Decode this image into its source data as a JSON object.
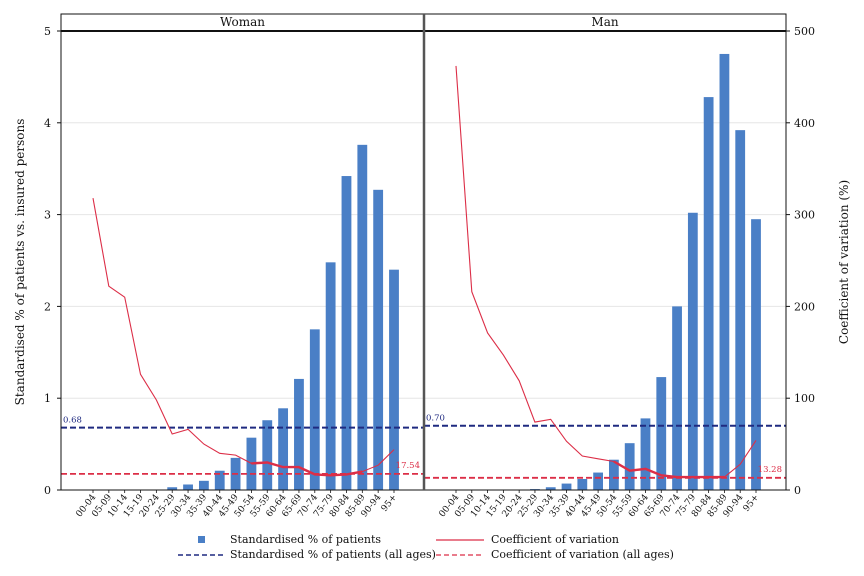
{
  "chart_data": {
    "type": "bar",
    "panels": [
      "Woman",
      "Man"
    ],
    "categories": [
      "00-04",
      "05-09",
      "10-14",
      "15-19",
      "20-24",
      "25-29",
      "30-34",
      "35-39",
      "40-44",
      "45-49",
      "50-54",
      "55-59",
      "60-64",
      "65-69",
      "70-74",
      "75-79",
      "80-84",
      "85-89",
      "90-94",
      "95+"
    ],
    "ylabel_left": "Standardised % of patients vs. insured persons",
    "ylabel_right": "Coefficient of variation (%)",
    "ylim_left": [
      0,
      5
    ],
    "yticks_left": [
      "0",
      "1",
      "2",
      "3",
      "4",
      "5"
    ],
    "ylim_right": [
      0,
      500
    ],
    "yticks_right": [
      "0",
      "100",
      "200",
      "300",
      "400",
      "500"
    ],
    "grid": true,
    "legend_position": "bottom",
    "series": [
      {
        "name": "Standardised % of patients",
        "kind": "bar",
        "axis": "left",
        "color": "#4a7fc6",
        "values": {
          "Woman": [
            0,
            0,
            0,
            0,
            0,
            0.03,
            0.06,
            0.1,
            0.21,
            0.35,
            0.57,
            0.76,
            0.89,
            1.21,
            1.75,
            2.48,
            3.42,
            3.76,
            3.27,
            2.4
          ],
          "Man": [
            0,
            0,
            0,
            0,
            0,
            0.01,
            0.03,
            0.07,
            0.12,
            0.19,
            0.33,
            0.51,
            0.78,
            1.23,
            2.0,
            3.02,
            4.28,
            4.75,
            3.92,
            2.95
          ]
        }
      },
      {
        "name": "Coefficient of variation",
        "kind": "line",
        "axis": "right",
        "color": "#dc2e47",
        "values": {
          "Woman": [
            318,
            222,
            210,
            126,
            98,
            61,
            66,
            50,
            40,
            38,
            29,
            30,
            25,
            25,
            17,
            16,
            17,
            20,
            27,
            44
          ],
          "Man": [
            462,
            216,
            171,
            147,
            119,
            74,
            77,
            53,
            37,
            34,
            31,
            21,
            23,
            16,
            14,
            14,
            14,
            14,
            28,
            54
          ]
        }
      },
      {
        "name": "Standardised % of patients (all ages)",
        "kind": "hline",
        "axis": "left",
        "color": "#1f2a80",
        "values": {
          "Woman": 0.68,
          "Man": 0.7
        },
        "labels": {
          "Woman": "0.68",
          "Man": "0.70"
        }
      },
      {
        "name": "Coefficient of variation (all ages)",
        "kind": "hline",
        "axis": "right",
        "color": "#dc2e47",
        "values": {
          "Woman": 17.54,
          "Man": 13.28
        },
        "labels": {
          "Woman": "17.54",
          "Man": "13.28"
        }
      }
    ]
  }
}
